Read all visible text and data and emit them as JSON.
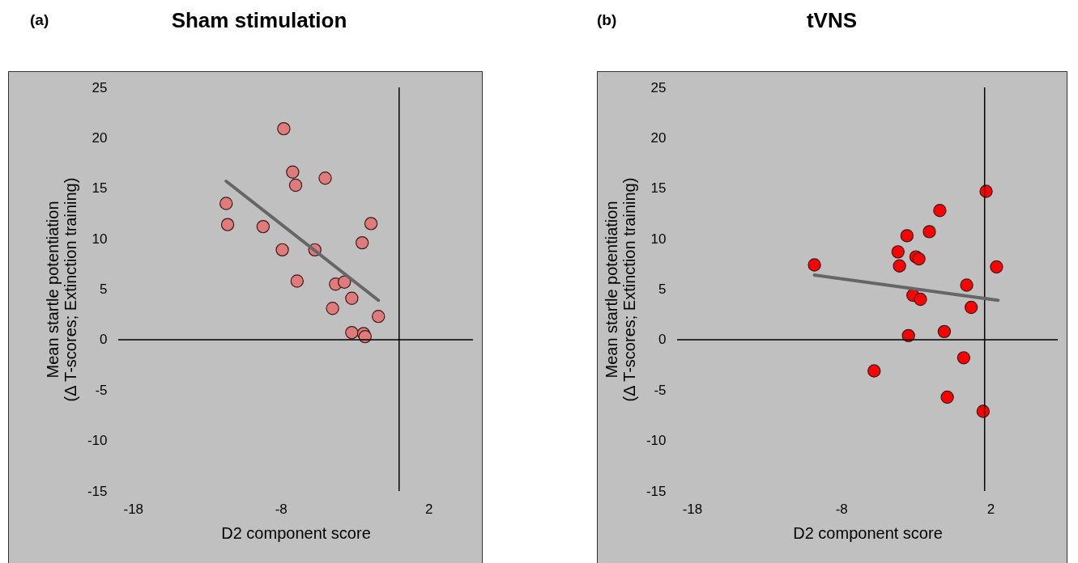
{
  "chart_data": [
    {
      "type": "scatter",
      "title": "Sham stimulation",
      "annotations": [
        "(a)"
      ],
      "xlabel": "D2 component score",
      "ylabel": "Mean startle potentiation\n(Δ T-scores; Extinction training)",
      "xlim": [
        -19,
        5
      ],
      "ylim": [
        -15,
        25
      ],
      "xticks": [
        -18,
        -8,
        2
      ],
      "yticks": [
        -15,
        -10,
        -5,
        0,
        5,
        10,
        15,
        20,
        25
      ],
      "marker": "circle",
      "grid": false,
      "ref_lines": [
        {
          "axis": "x",
          "value": 0,
          "color": "#000000"
        },
        {
          "axis": "y",
          "value": 0,
          "color": "#000000"
        }
      ],
      "series": [
        {
          "color": "#e07b7b",
          "x": [
            -7.8,
            -7.2,
            -7.0,
            -5.0,
            -11.7,
            -11.6,
            -9.2,
            -1.9,
            -2.5,
            -7.9,
            -5.7,
            -6.9,
            -4.3,
            -3.7,
            -3.2,
            -4.5,
            -1.4,
            -3.2,
            -2.4,
            -2.3
          ],
          "values": [
            20.9,
            16.6,
            15.3,
            16.0,
            13.5,
            11.4,
            11.2,
            11.5,
            9.6,
            8.9,
            8.9,
            5.8,
            5.5,
            5.7,
            4.1,
            3.1,
            2.3,
            0.7,
            0.6,
            0.3
          ]
        },
        {
          "type": "line",
          "marker": "none",
          "color": "#666666",
          "x": [
            -11.7,
            -1.4
          ],
          "values": [
            15.7,
            3.9
          ]
        }
      ]
    },
    {
      "type": "scatter",
      "title": "tVNS",
      "annotations": [
        "(b)"
      ],
      "xlabel": "D2 component score",
      "ylabel": "Mean startle potentiation\n(Δ T-scores; Extinction training)",
      "xlim": [
        -19,
        6.5
      ],
      "ylim": [
        -15,
        25
      ],
      "xticks": [
        -18,
        -8,
        2
      ],
      "yticks": [
        -15,
        -10,
        -5,
        0,
        5,
        10,
        15,
        20,
        25
      ],
      "marker": "circle",
      "grid": false,
      "ref_lines": [
        {
          "axis": "x",
          "value": 1.6,
          "color": "#000000"
        },
        {
          "axis": "y",
          "value": 0,
          "color": "#000000"
        }
      ],
      "series": [
        {
          "color": "#ff0000",
          "x": [
            -9.8,
            -3.6,
            -2.1,
            -4.2,
            -3.0,
            -2.8,
            -4.1,
            2.4,
            0.4,
            -3.2,
            -2.7,
            0.7,
            -1.1,
            -3.5,
            0.2,
            -5.8,
            -0.9,
            1.5,
            -1.4,
            1.7
          ],
          "values": [
            7.4,
            10.3,
            10.7,
            8.7,
            8.2,
            8.0,
            7.3,
            7.2,
            5.4,
            4.4,
            4.0,
            3.2,
            0.8,
            0.4,
            -1.8,
            -3.1,
            -5.7,
            -7.1,
            12.8,
            14.7
          ]
        },
        {
          "type": "line",
          "marker": "none",
          "color": "#666666",
          "x": [
            -9.8,
            2.5
          ],
          "values": [
            6.4,
            3.9
          ]
        }
      ]
    }
  ]
}
